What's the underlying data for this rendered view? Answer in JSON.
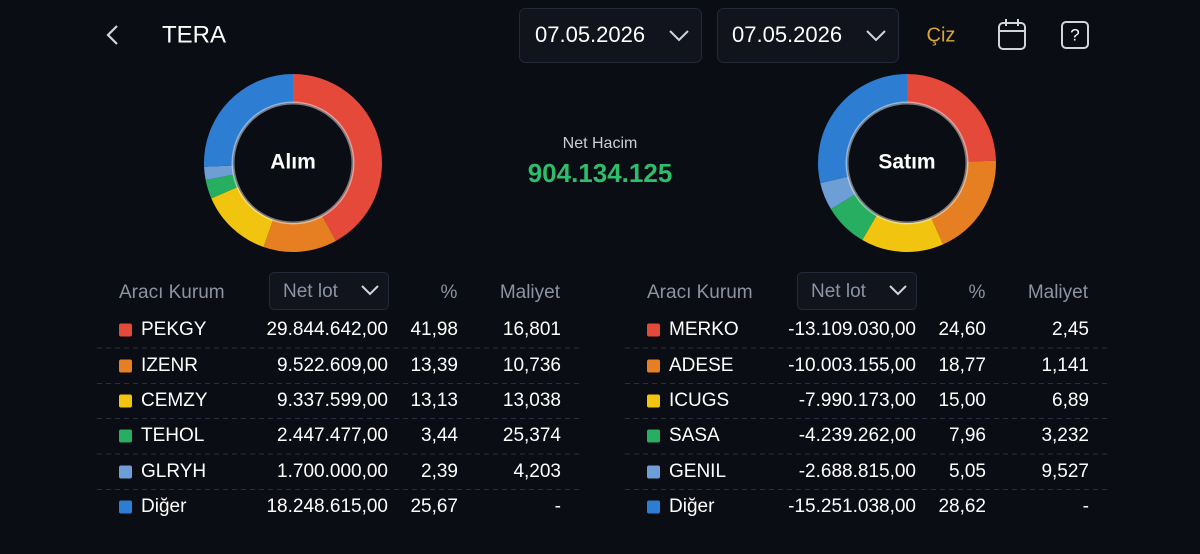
{
  "header": {
    "title": "TERA",
    "date_from": "07.05.2026",
    "date_to": "07.05.2026",
    "draw_button": "Çiz"
  },
  "net_volume": {
    "label": "Net Hacim",
    "value": "904.134.125"
  },
  "columns": {
    "broker": "Aracı Kurum",
    "sort": "Net lot",
    "pct": "%",
    "cost": "Maliyet"
  },
  "panels": [
    {
      "title": "Alım",
      "rows": [
        {
          "name": "PEKGY",
          "color": "#e5493a",
          "lot": "29.844.642,00",
          "pct": 41.98,
          "pct_label": "41,98",
          "cost": "16,801"
        },
        {
          "name": "IZENR",
          "color": "#e67e22",
          "lot": "9.522.609,00",
          "pct": 13.39,
          "pct_label": "13,39",
          "cost": "10,736"
        },
        {
          "name": "CEMZY",
          "color": "#f1c40f",
          "lot": "9.337.599,00",
          "pct": 13.13,
          "pct_label": "13,13",
          "cost": "13,038"
        },
        {
          "name": "TEHOL",
          "color": "#27ae60",
          "lot": "2.447.477,00",
          "pct": 3.44,
          "pct_label": "3,44",
          "cost": "25,374"
        },
        {
          "name": "GLRYH",
          "color": "#6e9ed6",
          "lot": "1.700.000,00",
          "pct": 2.39,
          "pct_label": "2,39",
          "cost": "4,203"
        },
        {
          "name": "Diğer",
          "color": "#2d7dd2",
          "lot": "18.248.615,00",
          "pct": 25.67,
          "pct_label": "25,67",
          "cost": "-"
        }
      ]
    },
    {
      "title": "Satım",
      "rows": [
        {
          "name": "MERKO",
          "color": "#e5493a",
          "lot": "-13.109.030,00",
          "pct": 24.6,
          "pct_label": "24,60",
          "cost": "2,45"
        },
        {
          "name": "ADESE",
          "color": "#e67e22",
          "lot": "-10.003.155,00",
          "pct": 18.77,
          "pct_label": "18,77",
          "cost": "1,141"
        },
        {
          "name": "ICUGS",
          "color": "#f1c40f",
          "lot": "-7.990.173,00",
          "pct": 15.0,
          "pct_label": "15,00",
          "cost": "6,89"
        },
        {
          "name": "SASA",
          "color": "#27ae60",
          "lot": "-4.239.262,00",
          "pct": 7.96,
          "pct_label": "7,96",
          "cost": "3,232"
        },
        {
          "name": "GENIL",
          "color": "#6e9ed6",
          "lot": "-2.688.815,00",
          "pct": 5.05,
          "pct_label": "5,05",
          "cost": "9,527"
        },
        {
          "name": "Diğer",
          "color": "#2d7dd2",
          "lot": "-15.251.038,00",
          "pct": 28.62,
          "pct_label": "28,62",
          "cost": "-"
        }
      ]
    }
  ]
}
